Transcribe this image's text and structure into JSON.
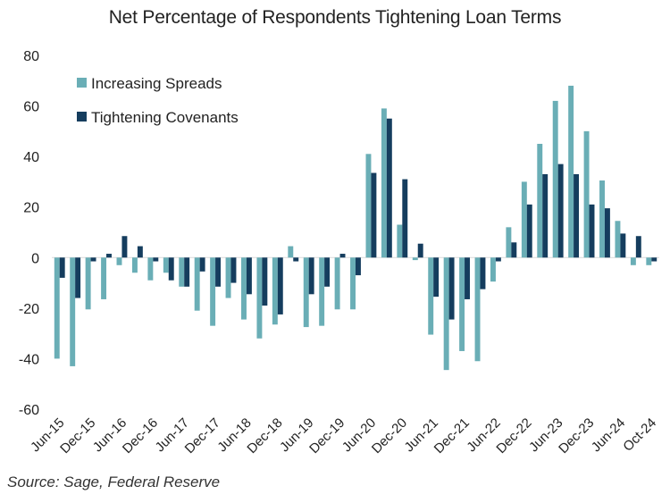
{
  "chart_data": {
    "type": "bar",
    "title": "Net Percentage of Respondents Tightening Loan Terms",
    "xlabel": "",
    "ylabel": "",
    "ylim": [
      -60,
      80
    ],
    "yticks": [
      80,
      60,
      40,
      20,
      0,
      -20,
      -40,
      -60
    ],
    "grid": false,
    "legend_position": "top-left",
    "categories": [
      "Jun-15",
      "Sep-15",
      "Dec-15",
      "Mar-16",
      "Jun-16",
      "Sep-16",
      "Dec-16",
      "Mar-17",
      "Jun-17",
      "Sep-17",
      "Dec-17",
      "Mar-18",
      "Jun-18",
      "Sep-18",
      "Dec-18",
      "Mar-19",
      "Jun-19",
      "Sep-19",
      "Dec-19",
      "Mar-20",
      "Jun-20",
      "Sep-20",
      "Dec-20",
      "Mar-21",
      "Jun-21",
      "Sep-21",
      "Dec-21",
      "Mar-22",
      "Jun-22",
      "Sep-22",
      "Dec-22",
      "Mar-23",
      "Jun-23",
      "Sep-23",
      "Dec-23",
      "Mar-24",
      "Jun-24",
      "Sep-24",
      "Oct-24"
    ],
    "tick_labels": [
      "Jun-15",
      "Dec-15",
      "Jun-16",
      "Dec-16",
      "Jun-17",
      "Dec-17",
      "Jun-18",
      "Dec-18",
      "Jun-19",
      "Dec-19",
      "Jun-20",
      "Dec-20",
      "Jun-21",
      "Dec-21",
      "Jun-22",
      "Dec-22",
      "Jun-23",
      "Dec-23",
      "Jun-24",
      "Oct-24"
    ],
    "series": [
      {
        "name": "Increasing Spreads",
        "color": "#6aaeb6",
        "values": [
          -40,
          -43,
          -20.5,
          -16.5,
          -3,
          -6,
          -9,
          -6,
          -11.5,
          -21,
          -27,
          -16,
          -24.5,
          -32,
          -26.5,
          4.5,
          -27.5,
          -27,
          -20.5,
          -20.5,
          41,
          59,
          13,
          -1,
          -30.5,
          -44.5,
          -37,
          -41,
          -9.5,
          12,
          30,
          45,
          62,
          68,
          50,
          30.5,
          14.5,
          -3,
          -3
        ]
      },
      {
        "name": "Tightening Covenants",
        "color": "#153d5e",
        "values": [
          -8,
          -16,
          -1.5,
          1.5,
          8.5,
          4.5,
          -1.5,
          -9,
          -11.5,
          -5.5,
          -11.5,
          -10,
          -14.5,
          -19,
          -22.5,
          -1.5,
          -14.5,
          -11.5,
          1.5,
          -7,
          33.5,
          55,
          31,
          5.5,
          -15.5,
          -24.5,
          -16.5,
          -12.5,
          -1.5,
          6,
          21,
          33,
          37,
          33,
          21,
          19.5,
          9.5,
          8.5,
          -1.5
        ]
      }
    ]
  },
  "source": "Source: Sage, Federal Reserve"
}
